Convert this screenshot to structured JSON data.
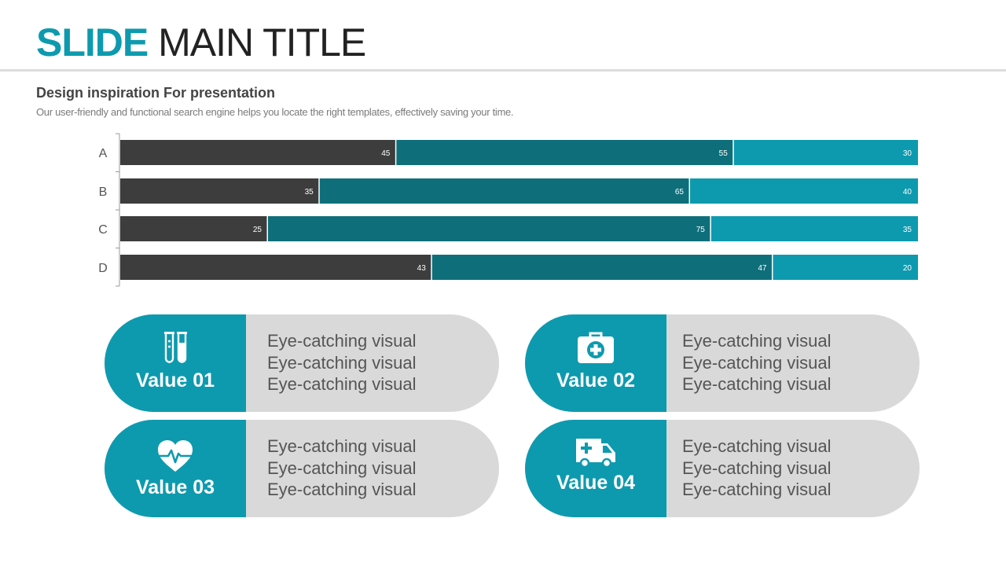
{
  "header": {
    "title_bold": "SLIDE",
    "title_rest": "MAIN TITLE",
    "subtitle": "Design inspiration For presentation",
    "description": "Our user-friendly and functional search engine helps you locate the right templates, effectively saving your time."
  },
  "colors": {
    "accent": "#0e9aae",
    "dark": "#3d3d3d",
    "teal_dark": "#0e6f7b",
    "teal_light": "#0e9aae",
    "card_bg": "#d9d9d9"
  },
  "chart_data": {
    "type": "bar",
    "orientation": "horizontal",
    "stacked": true,
    "categories": [
      "A",
      "B",
      "C",
      "D"
    ],
    "series": [
      {
        "values": [
          45,
          35,
          25,
          43
        ],
        "color": "#3d3d3d"
      },
      {
        "values": [
          55,
          65,
          75,
          47
        ],
        "color": "#0e6f7b"
      },
      {
        "values": [
          30,
          40,
          35,
          20
        ],
        "color": "#0e9aae"
      }
    ],
    "title": "",
    "xlabel": "",
    "ylabel": "",
    "grid": false,
    "legend": "none",
    "data_labels": true
  },
  "cards": [
    {
      "label": "Value 01",
      "icon": "test-tubes-icon",
      "lines": [
        "Eye-catching visual",
        "Eye-catching visual",
        "Eye-catching visual"
      ]
    },
    {
      "label": "Value 02",
      "icon": "first-aid-kit-icon",
      "lines": [
        "Eye-catching visual",
        "Eye-catching visual",
        "Eye-catching visual"
      ]
    },
    {
      "label": "Value 03",
      "icon": "heart-pulse-icon",
      "lines": [
        "Eye-catching visual",
        "Eye-catching visual",
        "Eye-catching visual"
      ]
    },
    {
      "label": "Value 04",
      "icon": "ambulance-icon",
      "lines": [
        "Eye-catching visual",
        "Eye-catching visual",
        "Eye-catching visual"
      ]
    }
  ]
}
